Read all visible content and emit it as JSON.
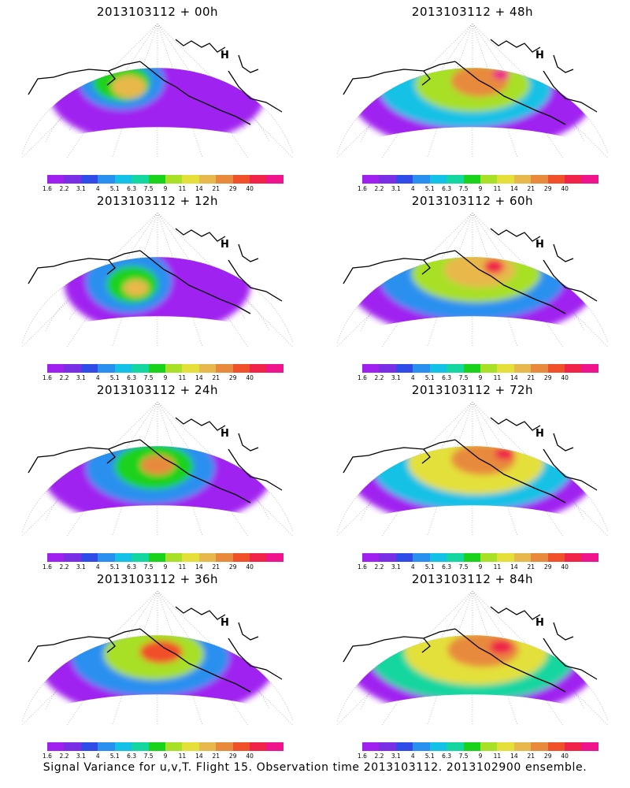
{
  "panels": [
    {
      "title": "2013103112 + 00h"
    },
    {
      "title": "2013103112 + 48h"
    },
    {
      "title": "2013103112 + 12h"
    },
    {
      "title": "2013103112 + 60h"
    },
    {
      "title": "2013103112 + 24h"
    },
    {
      "title": "2013103112 + 72h"
    },
    {
      "title": "2013103112 + 36h"
    },
    {
      "title": "2013103112 + 84h"
    }
  ],
  "colorbar": {
    "colors": [
      "#a020f0",
      "#7a2ee6",
      "#2f4ce8",
      "#2a90f0",
      "#13c1e6",
      "#14d6a0",
      "#1ad21a",
      "#a8e028",
      "#e4e03a",
      "#e8b84c",
      "#e88a3c",
      "#f0502a",
      "#f0244a",
      "#f0148c"
    ],
    "labels": [
      "1.6",
      "2.2",
      "3.1",
      "4",
      "5.1",
      "6.3",
      "7.5",
      "9",
      "11",
      "14",
      "21",
      "29",
      "40"
    ]
  },
  "symbol": "H",
  "caption": "Signal Variance for u,v,T. Flight 15. Observation time 2013103112. 2013102900 ensemble."
}
